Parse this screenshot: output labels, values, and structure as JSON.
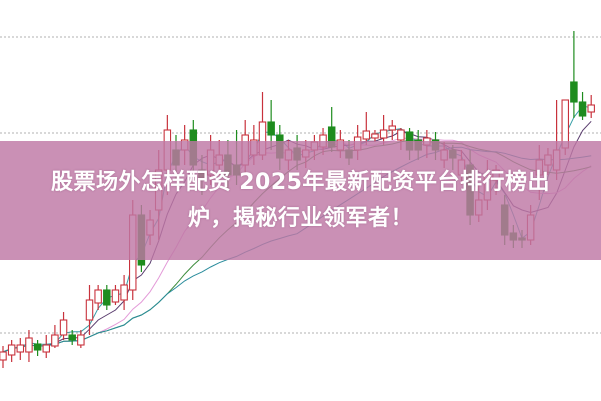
{
  "headline": {
    "line1": "股票场外怎样配资 2025年最新配资平台排行榜出",
    "line2": "炉，揭秘行业领军者！"
  },
  "colors": {
    "up": "#c8323c",
    "down": "#1e8c1e",
    "banner": "#be78a5",
    "ma_lines": [
      "#3aa0a8",
      "#5a3c6e",
      "#e39ad8",
      "#3c8c3c",
      "#2a8c9c"
    ]
  },
  "chart_data": {
    "type": "candlestick",
    "title": "",
    "xlabel": "",
    "ylabel": "",
    "axes_visible": false,
    "grid": "horizontal dotted",
    "candles": [
      [
        10,
        12,
        13.5,
        8
      ],
      [
        11.25,
        13.75,
        15,
        9.5
      ],
      [
        12,
        13.75,
        15.5,
        10
      ],
      [
        12,
        15.5,
        17.5,
        9.5
      ],
      [
        14,
        12.5,
        15,
        11
      ],
      [
        12,
        13.75,
        16.25,
        10.5
      ],
      [
        13.5,
        16.25,
        18.75,
        13
      ],
      [
        16.25,
        20,
        22,
        15
      ],
      [
        16.25,
        15,
        17.5,
        13.75
      ],
      [
        13.75,
        16.25,
        17.5,
        13
      ],
      [
        20,
        25,
        28.75,
        16.25
      ],
      [
        24.25,
        27.5,
        28.75,
        22.5
      ],
      [
        27.5,
        23.75,
        28.75,
        22.5
      ],
      [
        24.5,
        27.5,
        28.75,
        23.75
      ],
      [
        25,
        28.75,
        31.25,
        22.5
      ],
      [
        27.5,
        46.25,
        50,
        25
      ],
      [
        46.25,
        33.75,
        48.75,
        32
      ],
      [
        41.25,
        45,
        47.5,
        38.75
      ],
      [
        47.5,
        57.5,
        62.5,
        40
      ],
      [
        57.5,
        67.5,
        71.25,
        51.25
      ],
      [
        62.5,
        58.75,
        66.25,
        55
      ],
      [
        62.5,
        65,
        68.75,
        58.75
      ],
      [
        67.5,
        58.75,
        70,
        55
      ],
      [
        57.5,
        55,
        61.25,
        51.25
      ],
      [
        56.25,
        62.5,
        66.25,
        53.75
      ],
      [
        58.75,
        61.25,
        65,
        56.25
      ],
      [
        61.25,
        56.25,
        65,
        52.5
      ],
      [
        58.75,
        56.25,
        67.5,
        53.75
      ],
      [
        58.75,
        66.25,
        70,
        56.25
      ],
      [
        61.25,
        65,
        68.75,
        58.75
      ],
      [
        61.25,
        69.5,
        77,
        60
      ],
      [
        69.5,
        66.25,
        75,
        62.5
      ],
      [
        66.25,
        60.5,
        68.75,
        57.5
      ],
      [
        60,
        62.5,
        65,
        57.5
      ],
      [
        63,
        60,
        66.25,
        57.5
      ],
      [
        60.75,
        62.5,
        65,
        58
      ],
      [
        62.5,
        64.5,
        66.25,
        60
      ],
      [
        63.25,
        66.25,
        68,
        61.25
      ],
      [
        68.25,
        63.25,
        73.25,
        62
      ],
      [
        62.5,
        65,
        67.5,
        60.5
      ],
      [
        62.5,
        60.5,
        65,
        58.75
      ],
      [
        62.5,
        65.75,
        68.75,
        60
      ],
      [
        65.25,
        67.25,
        72,
        63.75
      ],
      [
        65.5,
        66.5,
        67.5,
        64.5
      ],
      [
        65.5,
        67.5,
        71.25,
        63.75
      ],
      [
        67.5,
        68.5,
        70,
        65
      ],
      [
        65,
        67.5,
        68,
        62.5
      ],
      [
        67,
        62.5,
        68,
        60
      ],
      [
        65,
        62.5,
        67.5,
        60
      ],
      [
        63.75,
        65.5,
        67.5,
        60.5
      ],
      [
        65,
        62.5,
        67,
        60
      ],
      [
        60,
        62.5,
        64.5,
        58
      ],
      [
        62.5,
        60.5,
        63.75,
        57.5
      ],
      [
        56.25,
        60,
        62.5,
        53.75
      ],
      [
        58.75,
        46.25,
        62.5,
        43.75
      ],
      [
        46.25,
        50,
        53.75,
        44.5
      ],
      [
        50,
        56.25,
        60,
        47.5
      ],
      [
        55,
        57.5,
        58.75,
        51.25
      ],
      [
        48.75,
        41.25,
        51.25,
        38.75
      ],
      [
        41.75,
        40,
        43.75,
        38
      ],
      [
        40.5,
        40,
        42.5,
        38
      ],
      [
        40,
        46.25,
        48.75,
        38.75
      ],
      [
        56.25,
        60,
        63.75,
        50
      ],
      [
        58.75,
        61.25,
        63,
        56.25
      ],
      [
        57.5,
        62.5,
        75,
        55
      ],
      [
        63,
        75,
        75,
        61.25
      ],
      [
        79.5,
        74.5,
        92.25,
        70.5
      ],
      [
        74.5,
        71,
        77,
        70
      ],
      [
        72,
        73.75,
        76.25,
        70.5
      ]
    ],
    "candle_fields": [
      "open",
      "close",
      "high",
      "low"
    ]
  }
}
